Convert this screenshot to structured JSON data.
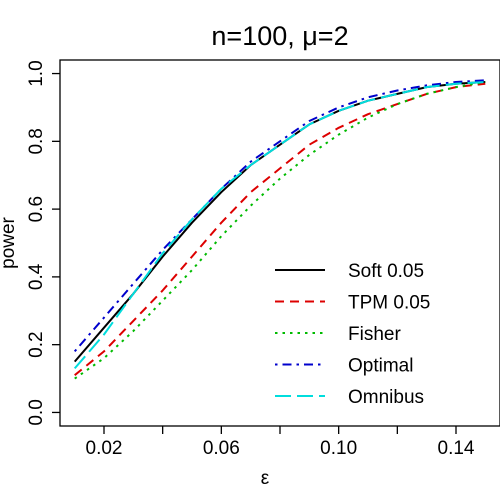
{
  "chart_data": {
    "type": "line",
    "title": "n=100, μ=2",
    "xlabel": "ε",
    "ylabel": "power",
    "xlim": [
      0.005,
      0.155
    ],
    "ylim": [
      -0.04,
      1.04
    ],
    "xticks": [
      0.02,
      0.04,
      0.06,
      0.08,
      0.1,
      0.12,
      0.14
    ],
    "xtick_labels": [
      "0.02",
      "",
      "0.06",
      "",
      "0.10",
      "",
      "0.14"
    ],
    "yticks": [
      0.0,
      0.2,
      0.4,
      0.6,
      0.8,
      1.0
    ],
    "ytick_labels": [
      "0.0",
      "0.2",
      "0.4",
      "0.6",
      "0.8",
      "1.0"
    ],
    "grid": false,
    "legend_position": "bottom-right",
    "x": [
      0.01,
      0.02,
      0.03,
      0.04,
      0.05,
      0.06,
      0.07,
      0.08,
      0.09,
      0.1,
      0.11,
      0.12,
      0.13,
      0.14,
      0.15
    ],
    "series": [
      {
        "name": "Soft 0.05",
        "color": "#000000",
        "dash": "solid",
        "values": [
          0.15,
          0.25,
          0.35,
          0.46,
          0.56,
          0.65,
          0.73,
          0.79,
          0.85,
          0.89,
          0.92,
          0.94,
          0.96,
          0.97,
          0.975
        ]
      },
      {
        "name": "TPM 0.05",
        "color": "#dd0000",
        "dash": "dashed",
        "values": [
          0.11,
          0.18,
          0.27,
          0.36,
          0.46,
          0.56,
          0.65,
          0.72,
          0.79,
          0.84,
          0.88,
          0.91,
          0.94,
          0.96,
          0.97
        ]
      },
      {
        "name": "Fisher",
        "color": "#00bb00",
        "dash": "dotted",
        "values": [
          0.1,
          0.16,
          0.24,
          0.33,
          0.42,
          0.52,
          0.61,
          0.69,
          0.76,
          0.82,
          0.87,
          0.91,
          0.94,
          0.96,
          0.975
        ]
      },
      {
        "name": "Optimal",
        "color": "#0000cc",
        "dash": "dotdash",
        "values": [
          0.18,
          0.28,
          0.38,
          0.48,
          0.57,
          0.66,
          0.74,
          0.8,
          0.86,
          0.9,
          0.93,
          0.95,
          0.965,
          0.975,
          0.98
        ]
      },
      {
        "name": "Omnibus",
        "color": "#00dddd",
        "dash": "longdash",
        "values": [
          0.13,
          0.23,
          0.35,
          0.47,
          0.57,
          0.66,
          0.73,
          0.79,
          0.85,
          0.89,
          0.92,
          0.94,
          0.96,
          0.97,
          0.975
        ]
      }
    ]
  }
}
